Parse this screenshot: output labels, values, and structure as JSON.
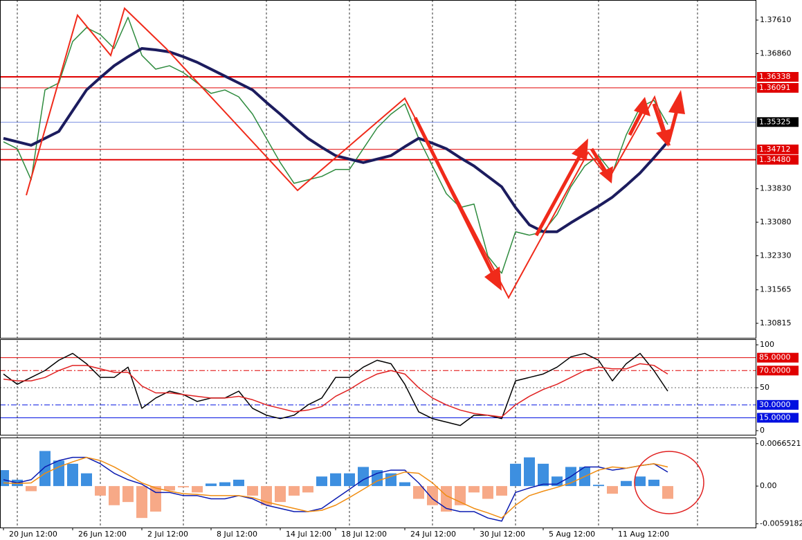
{
  "chart_data": [
    {
      "type": "line",
      "categories": [
        "20 Jun 12:00",
        null,
        null,
        null,
        null,
        "26 Jun 12:00",
        null,
        null,
        null,
        null,
        "2 Jul 12:00",
        null,
        null,
        null,
        null,
        "8 Jul 12:00",
        null,
        null,
        null,
        null,
        "14 Jul 12:00",
        null,
        null,
        null,
        "18 Jul 12:00",
        null,
        null,
        null,
        null,
        "24 Jul 12:00",
        null,
        null,
        null,
        null,
        "30 Jul 12:00",
        null,
        null,
        null,
        null,
        "5 Aug 12:00",
        null,
        null,
        null,
        null,
        "11 Aug 12:00",
        null,
        null,
        null,
        null
      ],
      "series": [
        {
          "color": "#2e8b3e",
          "values": [
            1.34882,
            1.34727,
            1.3403,
            1.36044,
            1.362,
            1.3713,
            1.3744,
            1.37284,
            1.36974,
            1.37672,
            1.3682,
            1.3651,
            1.36587,
            1.36432,
            1.362,
            1.35967,
            1.36044,
            1.3589,
            1.35502,
            1.3496,
            1.34417,
            1.33952,
            1.3403,
            1.34107,
            1.34262,
            1.34262,
            1.34727,
            1.35192,
            1.35502,
            1.35734,
            1.3496,
            1.3434,
            1.3372,
            1.3341,
            1.33487,
            1.32324,
            1.31937,
            1.32867,
            1.3279,
            1.32867,
            1.33254,
            1.33874,
            1.3434,
            1.34572,
            1.34184,
            1.35037,
            1.35657,
            1.35812,
            1.3527
          ]
        },
        {
          "color": "#1c1c5e",
          "values": [
            1.3496,
            1.34882,
            1.34805,
            1.3496,
            1.35114,
            1.3558,
            1.36044,
            1.36323,
            1.36587,
            1.36788,
            1.36974,
            1.36943,
            1.36897,
            1.36788,
            1.36664,
            1.3651,
            1.36354,
            1.362,
            1.36044,
            1.35765,
            1.35502,
            1.35223,
            1.3496,
            1.34758,
            1.34572,
            1.34494,
            1.34417,
            1.34494,
            1.34572,
            1.34773,
            1.3496,
            1.34851,
            1.34727,
            1.34525,
            1.3434,
            1.34107,
            1.33874,
            1.3341,
            1.33022,
            1.32867,
            1.32867,
            1.33068,
            1.33254,
            1.3344,
            1.33642,
            1.33905,
            1.34184,
            1.34525,
            1.34882
          ]
        }
      ],
      "ylim": [
        1.30489,
        1.3806
      ],
      "yticks": [
        {
          "value": 1.3761,
          "label": "1.37610"
        },
        {
          "value": 1.3686,
          "label": "1.36860"
        },
        {
          "value": 1.3383,
          "label": "1.33830"
        },
        {
          "value": 1.3308,
          "label": "1.33080"
        },
        {
          "value": 1.3233,
          "label": "1.32330"
        },
        {
          "value": 1.31565,
          "label": "1.31565"
        },
        {
          "value": 1.30815,
          "label": "1.30815"
        }
      ],
      "levels": [
        {
          "value": 1.36338,
          "label": "1.36338",
          "color": "#e00000",
          "width": 2
        },
        {
          "value": 1.36091,
          "label": "1.36091",
          "color": "#e00000",
          "width": 1
        },
        {
          "value": 1.35325,
          "label": "1.35325",
          "color": "#3050d0",
          "width": 0.7,
          "box": "#000000"
        },
        {
          "value": 1.34712,
          "label": "1.34712",
          "color": "#e00000",
          "width": 1
        },
        {
          "value": 1.3448,
          "label": "1.34480",
          "color": "#e00000",
          "width": 2
        }
      ]
    },
    {
      "type": "line",
      "series": [
        {
          "color": "#000000",
          "values": [
            66,
            54,
            62,
            70,
            82,
            90,
            78,
            62,
            62,
            74,
            26,
            38,
            46,
            42,
            34,
            38,
            38,
            46,
            26,
            18,
            14,
            18,
            30,
            38,
            62,
            62,
            74,
            82,
            78,
            54,
            22,
            14,
            10,
            6,
            18,
            18,
            14,
            58,
            62,
            66,
            74,
            86,
            90,
            82,
            58,
            78,
            90,
            70,
            46
          ]
        },
        {
          "color": "#e02020",
          "values": [
            60,
            58,
            58,
            62,
            70,
            76,
            76,
            72,
            68,
            68,
            52,
            44,
            44,
            42,
            40,
            38,
            38,
            40,
            36,
            30,
            26,
            22,
            24,
            28,
            40,
            48,
            58,
            66,
            70,
            66,
            50,
            38,
            30,
            24,
            20,
            18,
            16,
            30,
            40,
            48,
            54,
            62,
            70,
            74,
            72,
            72,
            78,
            76,
            66
          ]
        }
      ],
      "ylim": [
        -4.8,
        106.5
      ],
      "yticks": [
        0,
        50,
        100
      ],
      "levels": [
        {
          "value": 85,
          "label": "85.0000",
          "color": "#e00000",
          "dash": "none"
        },
        {
          "value": 70,
          "label": "70.0000",
          "color": "#e00000",
          "dash": "8 3 2 3"
        },
        {
          "value": 30,
          "label": "30.0000",
          "color": "#0010e0",
          "dash": "8 3 2 3"
        },
        {
          "value": 15,
          "label": "15.0000",
          "color": "#0010e0",
          "dash": "none"
        }
      ]
    },
    {
      "type": "bar",
      "series": [
        {
          "kind": "histogram",
          "color": "#3d8fe0",
          "negative_color": "#f7a987",
          "values": [
            0.0025,
            0.001,
            -0.0008,
            0.0055,
            0.004,
            0.0035,
            0.002,
            -0.0015,
            -0.003,
            -0.0025,
            -0.005,
            -0.004,
            -0.0007,
            -0.0002,
            -0.001,
            0.0004,
            0.0006,
            0.001,
            -0.0015,
            -0.003,
            -0.0025,
            -0.0015,
            -0.001,
            0.0015,
            0.002,
            0.002,
            0.003,
            0.0025,
            0.002,
            0.0006,
            -0.002,
            -0.003,
            -0.004,
            -0.003,
            -0.001,
            -0.002,
            -0.0015,
            0.0035,
            0.0045,
            0.0035,
            0.0015,
            0.003,
            0.003,
            0.0002,
            -0.0012,
            0.0008,
            0.0015,
            0.001,
            -0.002
          ]
        },
        {
          "kind": "line",
          "color": "#0a1ab0",
          "values": [
            0.001,
            0.0005,
            0.001,
            0.003,
            0.004,
            0.0045,
            0.0045,
            0.0035,
            0.002,
            0.001,
            0.0003,
            -0.001,
            -0.001,
            -0.0015,
            -0.0015,
            -0.002,
            -0.002,
            -0.0015,
            -0.002,
            -0.003,
            -0.0035,
            -0.004,
            -0.004,
            -0.0035,
            -0.002,
            -0.0005,
            0.001,
            0.002,
            0.0025,
            0.0025,
            0.0005,
            -0.002,
            -0.0035,
            -0.004,
            -0.004,
            -0.005,
            -0.0055,
            -0.001,
            -0.0003,
            0.0003,
            0.0003,
            0.0015,
            0.003,
            0.003,
            0.0025,
            0.0028,
            0.0032,
            0.0035,
            0.0022
          ]
        },
        {
          "kind": "line",
          "color": "#f08c10",
          "values": [
            0.0005,
            0.0004,
            0.0005,
            0.002,
            0.003,
            0.0038,
            0.0045,
            0.004,
            0.003,
            0.0018,
            0.0005,
            -0.0003,
            -0.0008,
            -0.0012,
            -0.0013,
            -0.0015,
            -0.0015,
            -0.0015,
            -0.0018,
            -0.0025,
            -0.003,
            -0.0035,
            -0.004,
            -0.0038,
            -0.003,
            -0.0018,
            -0.0005,
            0.0008,
            0.0015,
            0.0022,
            0.002,
            0.0005,
            -0.0015,
            -0.0025,
            -0.0035,
            -0.0042,
            -0.005,
            -0.003,
            -0.0015,
            -0.0008,
            -0.0002,
            0.0005,
            0.0015,
            0.0025,
            0.003,
            0.0028,
            0.0032,
            0.0035,
            0.003
          ]
        }
      ],
      "ylim": [
        -0.0065,
        0.0075
      ],
      "yticks": [
        {
          "value": 0.0066521,
          "label": "0.0066521"
        },
        {
          "value": 0,
          "label": "0.00"
        },
        {
          "value": -0.0059182,
          "label": "-0.0059182"
        }
      ]
    }
  ]
}
